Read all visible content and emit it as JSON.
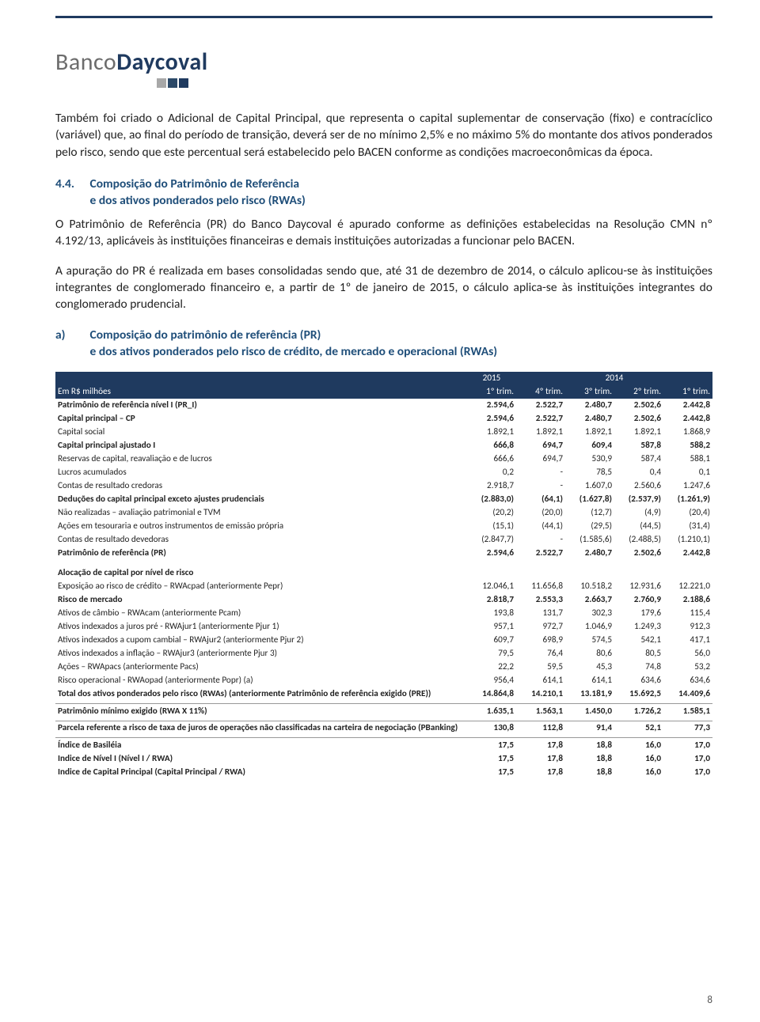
{
  "logo": {
    "part1": "Banco",
    "part2": "Daycoval"
  },
  "para1": "Também foi criado o Adicional de Capital Principal, que representa o capital suplementar de conservação (fixo) e contracíclico (variável) que, ao final do período de transição, deverá ser de no mínimo 2,5% e no máximo 5% do montante dos ativos ponderados pelo risco, sendo que este percentual será estabelecido pelo BACEN conforme as condições macroeconômicas da época.",
  "section": {
    "num": "4.4.",
    "title_l1": "Composição do Patrimônio de Referência",
    "title_l2": "e dos ativos ponderados pelo risco (RWAs)"
  },
  "para2": "O Patrimônio de Referência (PR) do Banco Daycoval é apurado conforme as definições estabelecidas na Resolução CMN nº 4.192/13, aplicáveis às instituições financeiras e demais instituições autorizadas a funcionar pelo BACEN.",
  "para3": "A apuração do PR é realizada em bases consolidadas sendo que, até 31 de dezembro de 2014, o cálculo aplicou-se às instituições integrantes de conglomerado financeiro e, a partir de 1º de janeiro de 2015, o cálculo aplica-se às instituições integrantes do conglomerado prudencial.",
  "sub": {
    "lbl": "a)",
    "t1": "Composição do patrimônio de referência (PR)",
    "t2": "e dos ativos ponderados pelo risco de crédito, de mercado e operacional (RWAs)"
  },
  "table": {
    "unit": "Em R$ milhões",
    "year1": "2015",
    "year2": "2014",
    "cols": [
      "1º trim.",
      "4º trim.",
      "3º trim.",
      "2º trim.",
      "1º trim."
    ],
    "rows": [
      {
        "t": "bold",
        "l": "Patrimônio de referência nível I (PR_I)",
        "v": [
          "2.594,6",
          "2.522,7",
          "2.480,7",
          "2.502,6",
          "2.442,8"
        ]
      },
      {
        "t": "bold",
        "l": "Capital principal – CP",
        "v": [
          "2.594,6",
          "2.522,7",
          "2.480,7",
          "2.502,6",
          "2.442,8"
        ]
      },
      {
        "t": "",
        "l": "Capital social",
        "v": [
          "1.892,1",
          "1.892,1",
          "1.892,1",
          "1.892,1",
          "1.868,9"
        ]
      },
      {
        "t": "bold",
        "l": "Capital principal ajustado I",
        "v": [
          "666,8",
          "694,7",
          "609,4",
          "587,8",
          "588,2"
        ]
      },
      {
        "t": "",
        "l": "Reservas de capital, reavaliação e de lucros",
        "v": [
          "666,6",
          "694,7",
          "530,9",
          "587,4",
          "588,1"
        ]
      },
      {
        "t": "",
        "l": "Lucros acumulados",
        "v": [
          "0,2",
          "-",
          "78,5",
          "0,4",
          "0,1"
        ]
      },
      {
        "t": "",
        "l": "Contas de resultado credoras",
        "v": [
          "2.918,7",
          "-",
          "1.607,0",
          "2.560,6",
          "1.247,6"
        ]
      },
      {
        "t": "bold",
        "l": "Deduções do capital principal exceto ajustes prudenciais",
        "v": [
          "(2.883,0)",
          "(64,1)",
          "(1.627,8)",
          "(2.537,9)",
          "(1.261,9)"
        ]
      },
      {
        "t": "",
        "l": "Não realizadas – avaliação patrimonial e TVM",
        "v": [
          "(20,2)",
          "(20,0)",
          "(12,7)",
          "(4,9)",
          "(20,4)"
        ]
      },
      {
        "t": "",
        "l": "Ações em tesouraria e outros instrumentos de emissão própria",
        "v": [
          "(15,1)",
          "(44,1)",
          "(29,5)",
          "(44,5)",
          "(31,4)"
        ]
      },
      {
        "t": "",
        "l": "Contas de resultado devedoras",
        "v": [
          "(2.847,7)",
          "-",
          "(1.585,6)",
          "(2.488,5)",
          "(1.210,1)"
        ]
      },
      {
        "t": "bold",
        "l": "Patrimônio de referência (PR)",
        "v": [
          "2.594,6",
          "2.522,7",
          "2.480,7",
          "2.502,6",
          "2.442,8"
        ]
      },
      {
        "t": "spacer"
      },
      {
        "t": "bold",
        "l": "Alocação de capital por nível de risco",
        "v": [
          "",
          "",
          "",
          "",
          ""
        ]
      },
      {
        "t": "",
        "l": "Exposição ao risco de crédito – RWAcpad (anteriormente Pepr)",
        "v": [
          "12.046,1",
          "11.656,8",
          "10.518,2",
          "12.931,6",
          "12.221,0"
        ]
      },
      {
        "t": "bold",
        "l": "Risco de mercado",
        "v": [
          "2.818,7",
          "2.553,3",
          "2.663,7",
          "2.760,9",
          "2.188,6"
        ]
      },
      {
        "t": "",
        "l": "Ativos de câmbio – RWAcam (anteriormente Pcam)",
        "v": [
          "193,8",
          "131,7",
          "302,3",
          "179,6",
          "115,4"
        ]
      },
      {
        "t": "",
        "l": "Ativos indexados a juros pré - RWAjur1 (anteriormente Pjur 1)",
        "v": [
          "957,1",
          "972,7",
          "1.046,9",
          "1.249,3",
          "912,3"
        ]
      },
      {
        "t": "",
        "l": "Ativos indexados a cupom cambial – RWAjur2 (anteriormente Pjur 2)",
        "v": [
          "609,7",
          "698,9",
          "574,5",
          "542,1",
          "417,1"
        ]
      },
      {
        "t": "",
        "l": "Ativos indexados a inflação – RWAjur3 (anteriormente Pjur 3)",
        "v": [
          "79,5",
          "76,4",
          "80,6",
          "80,5",
          "56,0"
        ]
      },
      {
        "t": "",
        "l": "Ações – RWApacs (anteriormente Pacs)",
        "v": [
          "22,2",
          "59,5",
          "45,3",
          "74,8",
          "53,2"
        ]
      },
      {
        "t": "",
        "l": "Risco operacional - RWAopad (anteriormente Popr) (a)",
        "v": [
          "956,4",
          "614,1",
          "614,1",
          "634,6",
          "634,6"
        ]
      },
      {
        "t": "bold",
        "l": "Total dos ativos ponderados pelo risco (RWAs) (anteriormente Patrimônio de referência exigido (PRE))",
        "v": [
          "14.864,8",
          "14.210,1",
          "13.181,9",
          "15.692,5",
          "14.409,6"
        ]
      },
      {
        "t": "sep"
      },
      {
        "t": "bold",
        "l": "Patrimônio mínimo exigido (RWA X 11%)",
        "v": [
          "1.635,1",
          "1.563,1",
          "1.450,0",
          "1.726,2",
          "1.585,1"
        ]
      },
      {
        "t": "sep"
      },
      {
        "t": "bold",
        "l": "Parcela referente a risco de taxa de juros de operações não classificadas na carteira de negociação (PBanking)",
        "v": [
          "130,8",
          "112,8",
          "91,4",
          "52,1",
          "77,3"
        ]
      },
      {
        "t": "sep"
      },
      {
        "t": "bold",
        "l": "Índice de Basiléia",
        "v": [
          "17,5",
          "17,8",
          "18,8",
          "16,0",
          "17,0"
        ]
      },
      {
        "t": "bold",
        "l": "Indice de Nível I (Nível I / RWA)",
        "v": [
          "17,5",
          "17,8",
          "18,8",
          "16,0",
          "17,0"
        ]
      },
      {
        "t": "bold",
        "l": "Indice de Capital Principal (Capital Principal / RWA)",
        "v": [
          "17,5",
          "17,8",
          "18,8",
          "16,0",
          "17,0"
        ]
      }
    ]
  },
  "pagenum": "8"
}
